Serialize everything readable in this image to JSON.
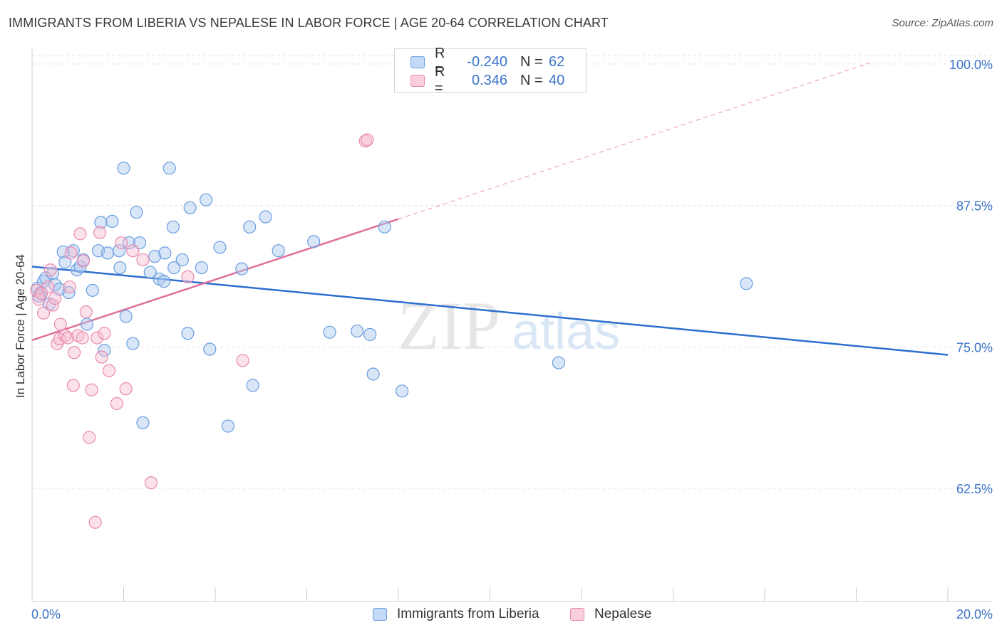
{
  "title": "IMMIGRANTS FROM LIBERIA VS NEPALESE IN LABOR FORCE | AGE 20-64 CORRELATION CHART",
  "source": "Source: ZipAtlas.com",
  "watermark": {
    "zip": "ZIP",
    "atlas": "atlas"
  },
  "colors": {
    "blue_fill": "#aac8f0",
    "blue_stroke": "#6a9ee0",
    "blue_line": "#2c6fcf",
    "pink_fill": "#f7bcd0",
    "pink_stroke": "#ea8ab0",
    "pink_line": "#e0709a",
    "axis_label": "#3b73c9",
    "grid": "#e3e3e3"
  },
  "legend": {
    "rows": [
      {
        "r_label": "R =",
        "r_value": "-0.240",
        "n_label": "N =",
        "n_value": "62"
      },
      {
        "r_label": "R =",
        "r_value": "0.346",
        "n_label": "N =",
        "n_value": "40"
      }
    ]
  },
  "chart_data": {
    "type": "scatter",
    "ylabel": "In Labor Force | Age 20-64",
    "x_tick_labels": [
      "0.0%",
      "20.0%"
    ],
    "y_tick_labels": [
      "100.0%",
      "87.5%",
      "75.0%",
      "62.5%"
    ],
    "xlim": [
      0,
      20
    ],
    "ylim": [
      52.5,
      100.75
    ],
    "y_ticks": [
      100,
      87.5,
      75,
      62.5
    ],
    "series": [
      {
        "name": "Immigrants from Liberia",
        "color": "blue",
        "trend": {
          "x": [
            0,
            20
          ],
          "y": [
            82.1,
            74.3
          ]
        },
        "points": [
          [
            0.12,
            80.2
          ],
          [
            0.2,
            79.8
          ],
          [
            0.25,
            80.8
          ],
          [
            0.3,
            81.1
          ],
          [
            0.38,
            78.8
          ],
          [
            0.45,
            81.5
          ],
          [
            0.5,
            80.5
          ],
          [
            0.6,
            80.1
          ],
          [
            0.68,
            83.4
          ],
          [
            0.72,
            82.5
          ],
          [
            0.8,
            79.8
          ],
          [
            0.9,
            83.5
          ],
          [
            0.98,
            81.8
          ],
          [
            1.05,
            82.1
          ],
          [
            1.12,
            82.7
          ],
          [
            1.2,
            77.0
          ],
          [
            1.32,
            80.0
          ],
          [
            1.45,
            83.5
          ],
          [
            1.5,
            86.0
          ],
          [
            1.58,
            74.7
          ],
          [
            1.65,
            83.3
          ],
          [
            1.75,
            86.1
          ],
          [
            1.9,
            83.5
          ],
          [
            1.92,
            82.0
          ],
          [
            2.05,
            77.7
          ],
          [
            2.0,
            90.8
          ],
          [
            2.12,
            84.2
          ],
          [
            2.2,
            75.3
          ],
          [
            2.28,
            86.9
          ],
          [
            2.35,
            84.2
          ],
          [
            2.42,
            68.3
          ],
          [
            2.58,
            81.6
          ],
          [
            2.68,
            83.0
          ],
          [
            2.78,
            81.0
          ],
          [
            2.88,
            80.8
          ],
          [
            2.9,
            83.3
          ],
          [
            3.08,
            85.6
          ],
          [
            3.1,
            82.0
          ],
          [
            3.28,
            82.7
          ],
          [
            3.4,
            76.2
          ],
          [
            3.45,
            87.3
          ],
          [
            3.7,
            82.0
          ],
          [
            3.8,
            88.0
          ],
          [
            3.88,
            74.8
          ],
          [
            4.1,
            83.8
          ],
          [
            4.28,
            68.0
          ],
          [
            4.58,
            81.9
          ],
          [
            4.75,
            85.6
          ],
          [
            4.82,
            71.6
          ],
          [
            5.1,
            86.5
          ],
          [
            5.38,
            83.5
          ],
          [
            6.15,
            84.3
          ],
          [
            6.5,
            76.3
          ],
          [
            7.1,
            76.4
          ],
          [
            7.38,
            76.1
          ],
          [
            7.45,
            72.6
          ],
          [
            7.7,
            85.6
          ],
          [
            8.08,
            71.1
          ],
          [
            3.0,
            90.8
          ],
          [
            11.5,
            73.6
          ],
          [
            15.6,
            80.6
          ],
          [
            0.15,
            79.5
          ]
        ]
      },
      {
        "name": "Nepalese",
        "color": "pink",
        "trend": {
          "x": [
            0,
            8.0
          ],
          "y": [
            75.6,
            86.3
          ]
        },
        "dash": {
          "x": [
            8.0,
            18.3
          ],
          "y": [
            86.3,
            100.1
          ]
        },
        "points": [
          [
            0.1,
            80.0
          ],
          [
            0.15,
            79.2
          ],
          [
            0.2,
            79.7
          ],
          [
            0.25,
            78.0
          ],
          [
            0.35,
            80.3
          ],
          [
            0.4,
            81.8
          ],
          [
            0.45,
            78.7
          ],
          [
            0.5,
            79.3
          ],
          [
            0.55,
            75.3
          ],
          [
            0.6,
            75.7
          ],
          [
            0.62,
            77.0
          ],
          [
            0.72,
            76.0
          ],
          [
            0.78,
            75.8
          ],
          [
            0.82,
            80.3
          ],
          [
            0.85,
            83.3
          ],
          [
            0.9,
            71.6
          ],
          [
            0.92,
            74.5
          ],
          [
            1.0,
            76.0
          ],
          [
            1.05,
            85.0
          ],
          [
            1.1,
            75.8
          ],
          [
            1.12,
            82.6
          ],
          [
            1.18,
            78.1
          ],
          [
            1.25,
            67.0
          ],
          [
            1.3,
            71.2
          ],
          [
            1.38,
            59.5
          ],
          [
            1.42,
            75.8
          ],
          [
            1.48,
            85.1
          ],
          [
            1.52,
            74.1
          ],
          [
            1.58,
            76.2
          ],
          [
            1.68,
            72.9
          ],
          [
            1.85,
            70.0
          ],
          [
            1.95,
            84.2
          ],
          [
            2.05,
            71.3
          ],
          [
            2.2,
            83.5
          ],
          [
            2.6,
            63.0
          ],
          [
            3.4,
            81.2
          ],
          [
            4.6,
            73.8
          ],
          [
            7.28,
            93.2
          ],
          [
            7.32,
            93.3
          ],
          [
            2.42,
            82.7
          ]
        ]
      }
    ]
  },
  "bottom_legend": {
    "items": [
      {
        "label": "Immigrants from Liberia"
      },
      {
        "label": "Nepalese"
      }
    ]
  }
}
